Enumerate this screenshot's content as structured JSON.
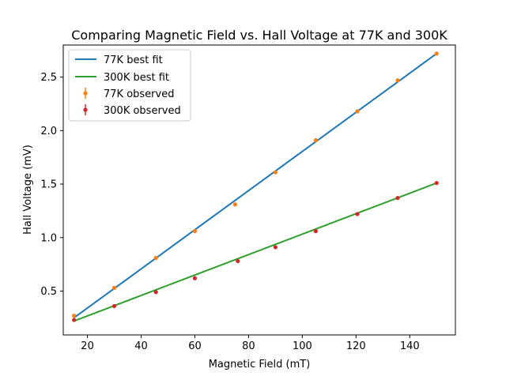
{
  "chart_data": {
    "type": "scatter",
    "title": "Comparing Magnetic Field vs. Hall Voltage at 77K and 300K",
    "xlabel": "Magnetic Field (mT)",
    "ylabel": "Hall Voltage (mV)",
    "xlim": [
      11,
      157
    ],
    "ylim": [
      0.09,
      2.8
    ],
    "xticks": [
      20,
      40,
      60,
      80,
      100,
      120,
      140
    ],
    "yticks": [
      0.5,
      1.0,
      1.5,
      2.0,
      2.5
    ],
    "xtick_labels": [
      "20",
      "40",
      "60",
      "80",
      "100",
      "120",
      "140"
    ],
    "ytick_labels": [
      "0.5",
      "1.0",
      "1.5",
      "2.0",
      "2.5"
    ],
    "grid": false,
    "legend_position": "top-left",
    "series": [
      {
        "name": "77K best fit",
        "kind": "line",
        "color": "#1f77b4",
        "x": [
          15,
          150
        ],
        "y": [
          0.25,
          2.72
        ]
      },
      {
        "name": "300K best fit",
        "kind": "line",
        "color": "#2ca02c",
        "x": [
          15,
          150
        ],
        "y": [
          0.22,
          1.51
        ]
      },
      {
        "name": "77K observed",
        "kind": "scatter",
        "color": "#ff7f0e",
        "x": [
          15,
          30,
          45.5,
          60,
          75,
          90,
          105,
          120.5,
          135.5,
          150
        ],
        "y": [
          0.27,
          0.53,
          0.81,
          1.06,
          1.31,
          1.61,
          1.91,
          2.18,
          2.47,
          2.72
        ]
      },
      {
        "name": "300K observed",
        "kind": "scatter",
        "color": "#d62728",
        "x": [
          15,
          30,
          45.5,
          60,
          76,
          90,
          105,
          120.5,
          135.5,
          150
        ],
        "y": [
          0.23,
          0.36,
          0.49,
          0.62,
          0.78,
          0.91,
          1.06,
          1.22,
          1.37,
          1.51
        ]
      }
    ]
  }
}
